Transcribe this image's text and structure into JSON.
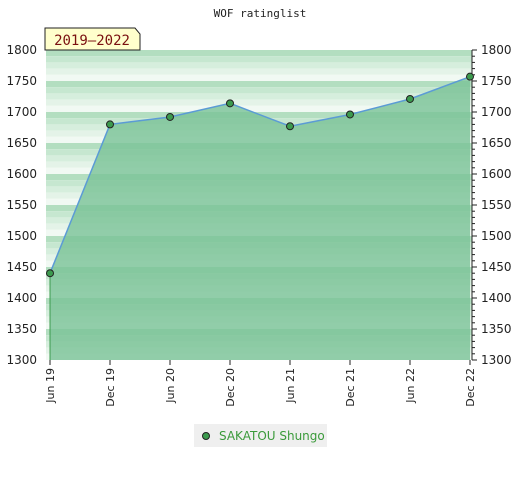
{
  "chart_data": {
    "type": "area",
    "title": "WOF ratinglist",
    "period_label": "2019–2022",
    "ylim": [
      1300,
      1800
    ],
    "y_ticks": [
      1300,
      1350,
      1400,
      1450,
      1500,
      1550,
      1600,
      1650,
      1700,
      1750,
      1800
    ],
    "x_ticks": [
      "Jun 19",
      "Dec 19",
      "Jun 20",
      "Dec 20",
      "Jun 21",
      "Dec 21",
      "Jun 22",
      "Dec 22"
    ],
    "series": [
      {
        "name": "SAKATOU Shungo",
        "x": [
          "Jun 19",
          "Dec 19",
          "Jun 20",
          "Dec 20",
          "Jun 21",
          "Dec 21",
          "Jun 22",
          "Dec 22"
        ],
        "values": [
          1440,
          1680,
          1692,
          1714,
          1677,
          1696,
          1721,
          1757
        ]
      }
    ],
    "legend": "bottom-center",
    "colors": {
      "line": "#5b9bd5",
      "marker": "#3c9a4e",
      "area": "#79c296",
      "band_dark": "#b3dec0",
      "band_light": "#f1f9f3",
      "badge_bg": "#ffffcc"
    }
  }
}
